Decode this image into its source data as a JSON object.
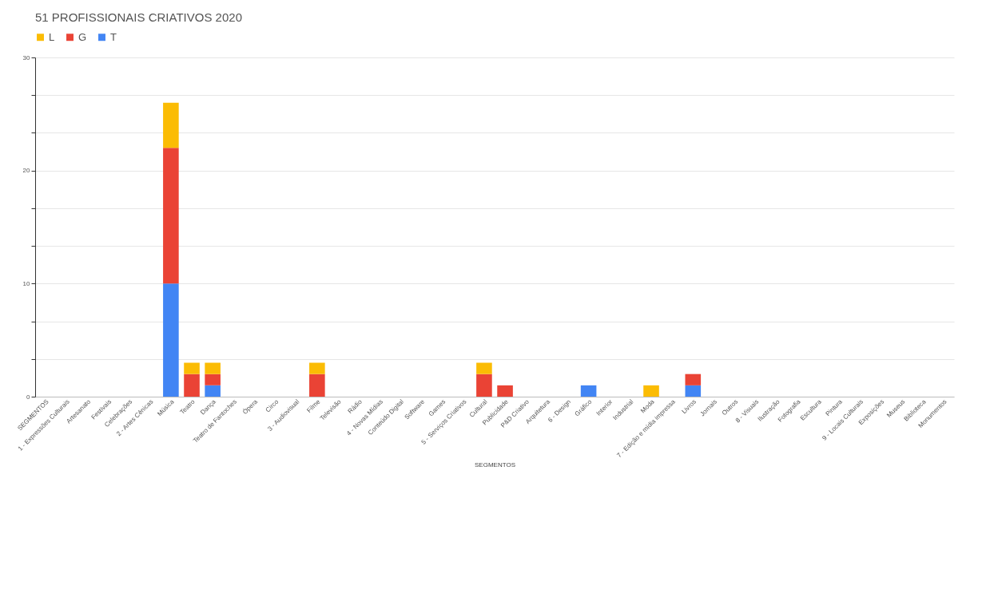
{
  "chart_data": {
    "type": "bar",
    "title": "51 PROFISSIONAIS CRIATIVOS 2020",
    "xlabel": "SEGMENTOS",
    "stacked": true,
    "legend": "top",
    "grid": "y",
    "categories": [
      "SEGMENTOS",
      "1 - Expressões Culturais",
      "Artesanato",
      "Festivais",
      "Celebrações",
      "2 - Artes Cênicas",
      "Música",
      "Teatro",
      "Dança",
      "Teatro de Fantoches",
      "Ópera",
      "Circo",
      "3 - Audiovisual",
      "Filme",
      "Televisão",
      "Rádio",
      "4 - Novas Mídias",
      "Conteúdo Digital",
      "Software",
      "Games",
      "5 - Serviços Criativos",
      "Cultural",
      "Publicidade",
      "P&D Criativo",
      "Arquitetura",
      "6 - Design",
      "Gráfico",
      "Interior",
      "Industrial",
      "Moda",
      "7 - Edição e mídia impressa",
      "Livros",
      "Jornais",
      "Outros",
      "8 - Visuais",
      "Ilustração",
      "Fotografia",
      "Escultura",
      "Pintura",
      "9 - Locais Culturais",
      "Exposições",
      "Museus",
      "Biblioteca",
      "Monumentos"
    ],
    "series": [
      {
        "name": "T",
        "color": "#4285f4",
        "values": [
          0,
          0,
          0,
          0,
          0,
          0,
          10,
          0,
          1,
          0,
          0,
          0,
          0,
          0,
          0,
          0,
          0,
          0,
          0,
          0,
          0,
          0,
          0,
          0,
          0,
          0,
          1,
          0,
          0,
          0,
          0,
          1,
          0,
          0,
          0,
          0,
          0,
          0,
          0,
          0,
          0,
          0,
          0,
          0
        ]
      },
      {
        "name": "G",
        "color": "#ea4335",
        "values": [
          0,
          0,
          0,
          0,
          0,
          0,
          12,
          2,
          1,
          0,
          0,
          0,
          0,
          2,
          0,
          0,
          0,
          0,
          0,
          0,
          0,
          2,
          1,
          0,
          0,
          0,
          0,
          0,
          0,
          0,
          0,
          1,
          0,
          0,
          0,
          0,
          0,
          0,
          0,
          0,
          0,
          0,
          0,
          0
        ]
      },
      {
        "name": "L",
        "color": "#fbbc04",
        "values": [
          0,
          0,
          0,
          0,
          0,
          0,
          4,
          1,
          1,
          0,
          0,
          0,
          0,
          1,
          0,
          0,
          0,
          0,
          0,
          0,
          0,
          1,
          0,
          0,
          0,
          0,
          0,
          0,
          0,
          1,
          0,
          0,
          0,
          0,
          0,
          0,
          0,
          0,
          0,
          0,
          0,
          0,
          0,
          0
        ]
      }
    ],
    "ylim": [
      0,
      30
    ],
    "yticks": [
      0,
      {
        "value": 3.33,
        "label": null
      },
      {
        "value": 6.67,
        "label": null
      },
      10,
      {
        "value": 13.33,
        "label": null
      },
      {
        "value": 16.67,
        "label": null
      },
      20,
      {
        "value": 23.33,
        "label": null
      },
      {
        "value": 26.67,
        "label": null
      },
      30
    ]
  }
}
